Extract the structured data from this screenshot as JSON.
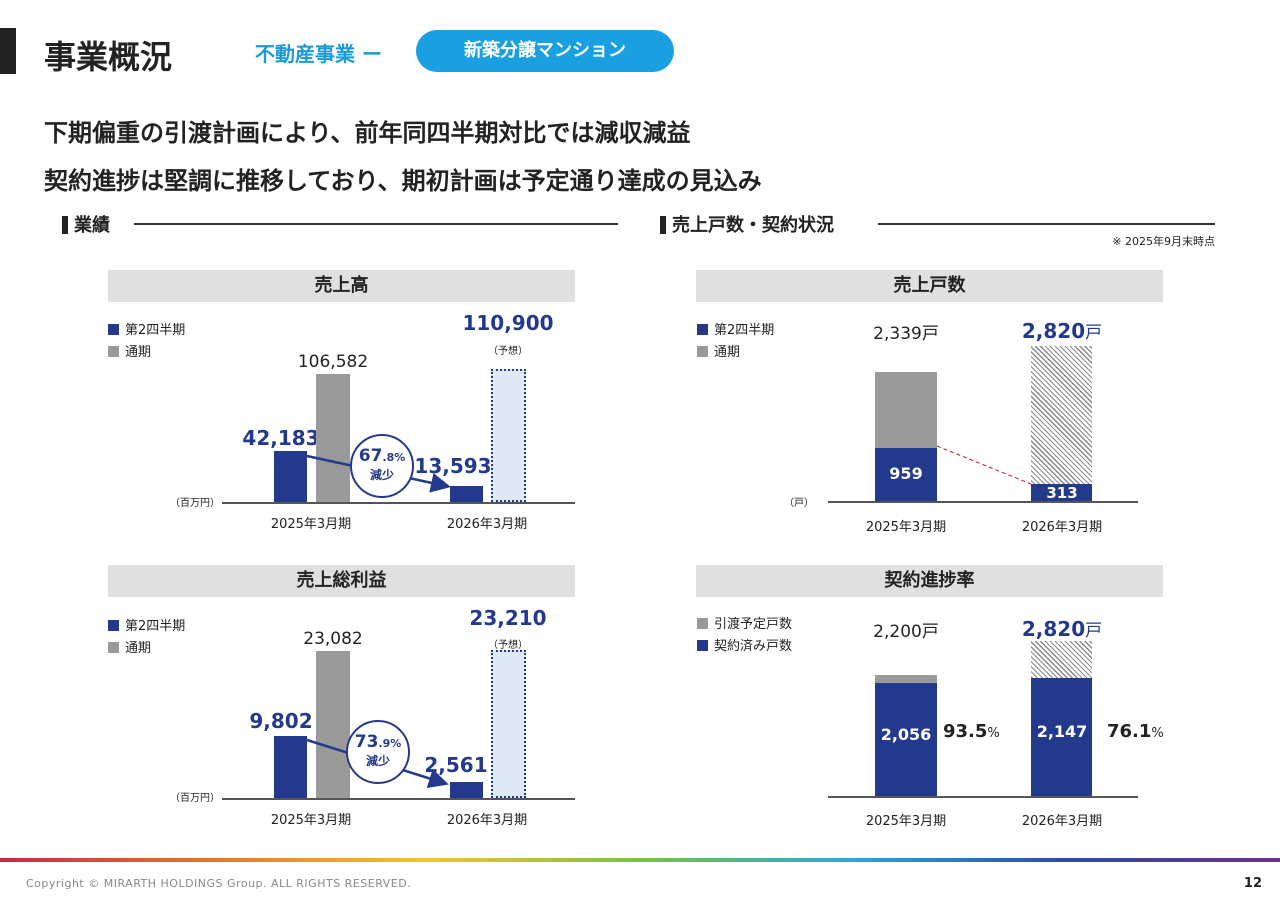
{
  "header": {
    "title": "事業概況",
    "segment": "不動産事業 ー",
    "pill": "新築分譲マンション"
  },
  "headlines": [
    "下期偏重の引渡計画により、前年同四半期対比では減収減益",
    "契約進捗は堅調に推移しており、期初計画は予定通り達成の見込み"
  ],
  "sections": {
    "left": "業績",
    "right": "売上戸数・契約状況",
    "note": "※ 2025年9月末時点"
  },
  "colors": {
    "navy": "#233a8c",
    "gray": "#9a9a9a",
    "forecast": "#dfeaf6",
    "accent": "#1aa0e0"
  },
  "chart_data": [
    {
      "type": "bar",
      "title": "売上高",
      "unit": "（百万円）",
      "categories": [
        "2025年3月期",
        "2026年3月期"
      ],
      "series": [
        {
          "name": "第2四半期",
          "values": [
            42183,
            13593
          ],
          "labels": [
            "42,183",
            "13,593"
          ]
        },
        {
          "name": "通期",
          "values": [
            106582,
            110900
          ],
          "labels": [
            "106,582",
            "110,900"
          ]
        }
      ],
      "forecast_note": "（予想）",
      "change": {
        "main": "67",
        "sub": ".8%",
        "label": "減少"
      }
    },
    {
      "type": "bar",
      "title": "売上総利益",
      "unit": "（百万円）",
      "categories": [
        "2025年3月期",
        "2026年3月期"
      ],
      "series": [
        {
          "name": "第2四半期",
          "values": [
            9802,
            2561
          ],
          "labels": [
            "9,802",
            "2,561"
          ]
        },
        {
          "name": "通期",
          "values": [
            23082,
            23210
          ],
          "labels": [
            "23,082",
            "23,210"
          ]
        }
      ],
      "forecast_note": "（予想）",
      "change": {
        "main": "73",
        "sub": ".9%",
        "label": "減少"
      }
    },
    {
      "type": "bar",
      "title": "売上戸数",
      "unit": "（戸）",
      "suffix": "戸",
      "categories": [
        "2025年3月期",
        "2026年3月期"
      ],
      "series": [
        {
          "name": "第2四半期",
          "values": [
            959,
            313
          ],
          "labels": [
            "959",
            "313"
          ]
        },
        {
          "name": "通期",
          "values": [
            2339,
            2820
          ],
          "labels": [
            "2,339",
            "2,820"
          ]
        }
      ]
    },
    {
      "type": "bar",
      "title": "契約進捗率",
      "suffix": "戸",
      "categories": [
        "2025年3月期",
        "2026年3月期"
      ],
      "series": [
        {
          "name": "引渡予定戸数",
          "values": [
            2200,
            2820
          ],
          "labels": [
            "2,200",
            "2,820"
          ]
        },
        {
          "name": "契約済み戸数",
          "values": [
            2056,
            2147
          ],
          "labels": [
            "2,056",
            "2,147"
          ]
        }
      ],
      "rates": [
        "93.5",
        "76.1"
      ],
      "rate_unit": "%"
    }
  ],
  "footer": {
    "copyright": "Copyright © MIRARTH HOLDINGS Group. ALL RIGHTS RESERVED.",
    "page": "12"
  }
}
